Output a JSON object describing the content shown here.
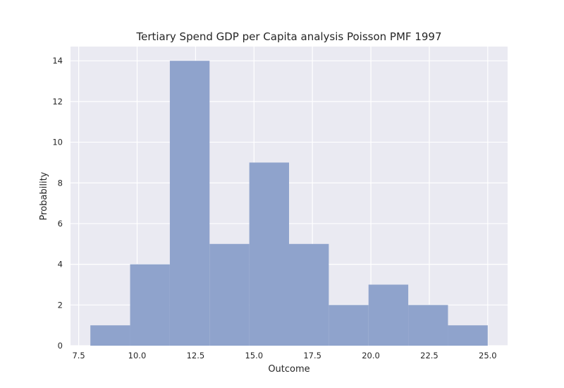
{
  "chart_data": {
    "type": "bar",
    "title": "Tertiary Spend GDP per Capita analysis Poisson PMF 1997",
    "xlabel": "Outcome",
    "ylabel": "Probability",
    "xlim": [
      7.15,
      25.85
    ],
    "ylim": [
      0,
      14.7
    ],
    "grid": true,
    "x_ticks": [
      "7.5",
      "10.0",
      "12.5",
      "15.0",
      "17.5",
      "20.0",
      "22.5",
      "25.0"
    ],
    "y_ticks": [
      "0",
      "2",
      "4",
      "6",
      "8",
      "10",
      "12",
      "14"
    ],
    "bins": [
      {
        "x0": 8.0,
        "x1": 9.7,
        "value": 1
      },
      {
        "x0": 9.7,
        "x1": 11.4,
        "value": 4
      },
      {
        "x0": 11.4,
        "x1": 13.1,
        "value": 14
      },
      {
        "x0": 13.1,
        "x1": 14.8,
        "value": 5
      },
      {
        "x0": 14.8,
        "x1": 16.5,
        "value": 9
      },
      {
        "x0": 16.5,
        "x1": 18.2,
        "value": 5
      },
      {
        "x0": 18.2,
        "x1": 19.9,
        "value": 2
      },
      {
        "x0": 19.9,
        "x1": 21.6,
        "value": 3
      },
      {
        "x0": 21.6,
        "x1": 23.3,
        "value": 2
      },
      {
        "x0": 23.3,
        "x1": 25.0,
        "value": 1
      }
    ],
    "colors": {
      "bar": "#8fa3cc",
      "plot_background": "#eaeaf2",
      "grid": "#ffffff",
      "text": "#262626"
    }
  }
}
